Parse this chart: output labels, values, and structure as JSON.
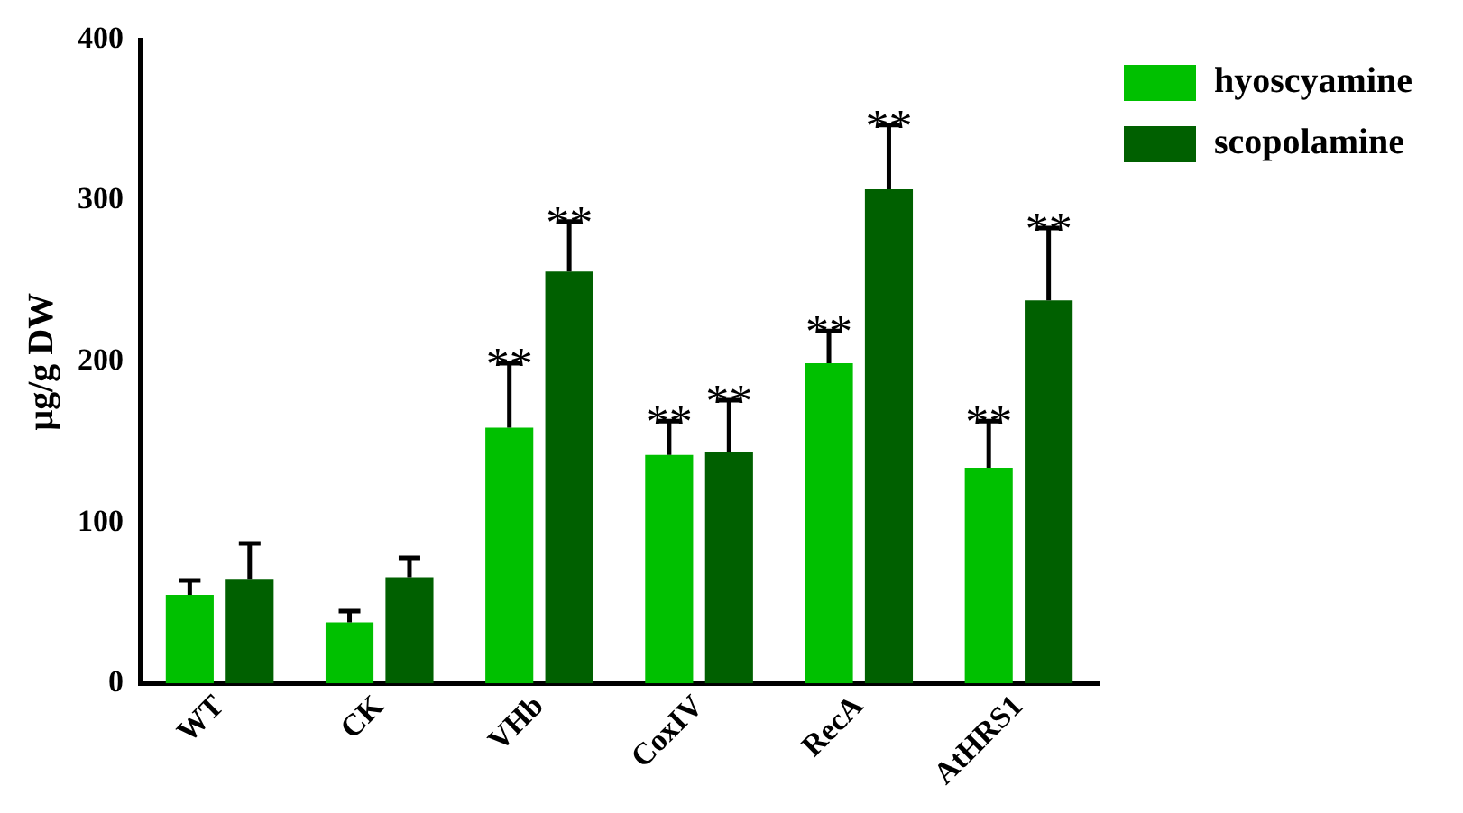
{
  "chart_data": {
    "type": "bar",
    "ylabel": "μg/g DW",
    "categories": [
      "WT",
      "CK",
      "VHb",
      "CoxIV",
      "RecA",
      "AtHRS1"
    ],
    "series": [
      {
        "name": "hyoscyamine",
        "color": "#00c000",
        "values": [
          55,
          38,
          159,
          142,
          199,
          134
        ],
        "errors": [
          [
            55,
            64
          ],
          [
            38,
            45
          ],
          [
            159,
            199
          ],
          [
            142,
            163
          ],
          [
            199,
            219
          ],
          [
            134,
            163
          ]
        ]
      },
      {
        "name": "scopolamine",
        "color": "#006000",
        "values": [
          65,
          66,
          256,
          144,
          307,
          238
        ],
        "errors": [
          [
            65,
            87
          ],
          [
            66,
            78
          ],
          [
            256,
            287
          ],
          [
            144,
            176
          ],
          [
            307,
            347
          ],
          [
            238,
            283
          ]
        ]
      }
    ],
    "annotations": [
      {
        "text": "**",
        "x": "VHb",
        "y": 159
      },
      {
        "text": "**",
        "x": "VHb",
        "y": 256
      },
      {
        "text": "**",
        "x": "CoxIV",
        "y": 142
      },
      {
        "text": "**",
        "x": "CoxIV",
        "y": 144
      },
      {
        "text": "**",
        "x": "RecA",
        "y": 199
      },
      {
        "text": "**",
        "x": "RecA",
        "y": 307
      },
      {
        "text": "**",
        "x": "AtHRS1",
        "y": 134
      },
      {
        "text": "**",
        "x": "AtHRS1",
        "y": 238
      }
    ],
    "ylim": [
      0,
      400
    ],
    "yticks": [
      0,
      100,
      200,
      300,
      400
    ],
    "grid": false,
    "legend": "top right"
  }
}
